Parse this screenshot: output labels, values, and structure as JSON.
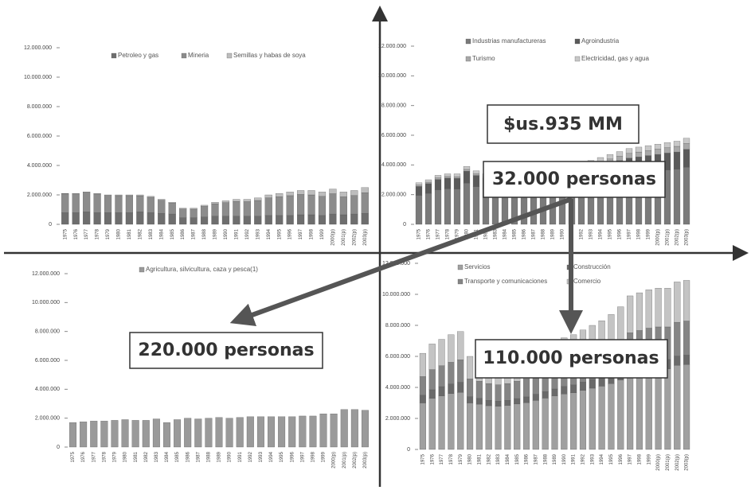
{
  "chart_data": [
    {
      "type": "bar",
      "stacked": true,
      "categories": [
        "1975",
        "1976",
        "1977",
        "1978",
        "1979",
        "1980",
        "1981",
        "1982",
        "1983",
        "1984",
        "1985",
        "1986",
        "1987",
        "1988",
        "1989",
        "1990",
        "1991",
        "1992",
        "1993",
        "1994",
        "1995",
        "1996",
        "1997",
        "1998",
        "1999",
        "2000(p)",
        "2001(p)",
        "2002(p)",
        "2003(p)"
      ],
      "series": [
        {
          "name": "Petroleo y gas",
          "color": "#6e6e6e",
          "values": [
            800000,
            800000,
            850000,
            800000,
            800000,
            800000,
            800000,
            850000,
            800000,
            750000,
            700000,
            450000,
            450000,
            500000,
            550000,
            550000,
            550000,
            550000,
            550000,
            600000,
            600000,
            600000,
            650000,
            650000,
            600000,
            700000,
            650000,
            700000,
            750000
          ]
        },
        {
          "name": "Mineria",
          "color": "#8c8c8c",
          "values": [
            1280000,
            1270000,
            1320000,
            1260000,
            1160000,
            1150000,
            1150000,
            1090000,
            1040000,
            890000,
            740000,
            590000,
            580000,
            720000,
            850000,
            930000,
            1010000,
            990000,
            1070000,
            1200000,
            1280000,
            1350000,
            1380000,
            1350000,
            1300000,
            1380000,
            1220000,
            1260000,
            1400000
          ]
        },
        {
          "name": "Semillas y habas de soya",
          "color": "#bdbdbd",
          "values": [
            20000,
            30000,
            30000,
            40000,
            40000,
            50000,
            50000,
            60000,
            60000,
            60000,
            60000,
            60000,
            70000,
            80000,
            100000,
            120000,
            140000,
            160000,
            180000,
            200000,
            220000,
            250000,
            270000,
            300000,
            300000,
            320000,
            330000,
            340000,
            350000
          ]
        }
      ],
      "ylim": [
        0,
        12000000
      ],
      "yticks": [
        0,
        {
          "value": 2000000,
          "label": "2.000.000"
        },
        {
          "value": 4000000,
          "label": "4.000.000"
        },
        {
          "value": 6000000,
          "label": "6.000.000"
        },
        {
          "value": 8000000,
          "label": "8.000.000"
        },
        {
          "value": 10000000,
          "label": "10.000.000"
        },
        {
          "value": 12000000,
          "label": "12.000.000"
        }
      ]
    },
    {
      "type": "bar",
      "stacked": true,
      "categories": [
        "1975",
        "1976",
        "1977",
        "1978",
        "1979",
        "1980",
        "1981",
        "1982",
        "1983",
        "1984",
        "1985",
        "1986",
        "1987",
        "1988",
        "1989",
        "1990",
        "1991",
        "1992",
        "1993",
        "1994",
        "1995",
        "1996",
        "1997",
        "1998",
        "1999",
        "2000(p)",
        "2001(p)",
        "2002(p)",
        "2003(p)"
      ],
      "series": [
        {
          "name": "Industrias manufactureras",
          "color": "#7a7a7a",
          "values": [
            1950000,
            2090000,
            2320000,
            2390000,
            2380000,
            2780000,
            2540000,
            2400000,
            2220000,
            2150000,
            2050000,
            2120000,
            2260000,
            2390000,
            2520000,
            2650000,
            2780000,
            2830000,
            2880000,
            3010000,
            3140000,
            3270000,
            3400000,
            3460000,
            3530000,
            3590000,
            3660000,
            3710000,
            3850000
          ]
        },
        {
          "name": "Agroindustria",
          "color": "#5a5a5a",
          "values": [
            600000,
            650000,
            700000,
            720000,
            720000,
            800000,
            750000,
            700000,
            680000,
            650000,
            650000,
            660000,
            700000,
            740000,
            780000,
            820000,
            860000,
            880000,
            900000,
            940000,
            980000,
            1020000,
            1060000,
            1080000,
            1100000,
            1120000,
            1140000,
            1160000,
            1200000
          ]
        },
        {
          "name": "Turismo",
          "color": "#a8a8a8",
          "values": [
            100000,
            100000,
            110000,
            110000,
            110000,
            120000,
            110000,
            100000,
            100000,
            100000,
            100000,
            110000,
            120000,
            140000,
            160000,
            180000,
            200000,
            220000,
            240000,
            260000,
            280000,
            300000,
            320000,
            330000,
            340000,
            350000,
            360000,
            380000,
            400000
          ]
        },
        {
          "name": "Electricidad, gas y agua",
          "color": "#c8c8c8",
          "values": [
            150000,
            160000,
            170000,
            180000,
            190000,
            200000,
            200000,
            200000,
            200000,
            200000,
            200000,
            210000,
            220000,
            230000,
            240000,
            250000,
            260000,
            270000,
            280000,
            290000,
            300000,
            310000,
            320000,
            330000,
            330000,
            340000,
            340000,
            350000,
            350000
          ]
        }
      ],
      "ylim": [
        0,
        12000000
      ],
      "yticks": [
        0,
        {
          "value": 2000000,
          "label": "2.000.000"
        },
        {
          "value": 4000000,
          "label": "4.000.000"
        },
        {
          "value": 6000000,
          "label": "6.000.000"
        },
        {
          "value": 8000000,
          "label": "8.000.000"
        },
        {
          "value": 10000000,
          "label": "10.000.000"
        },
        {
          "value": 12000000,
          "label": "12.000.000"
        }
      ]
    },
    {
      "type": "bar",
      "stacked": true,
      "categories": [
        "1975",
        "1976",
        "1977",
        "1978",
        "1979",
        "1980",
        "1981",
        "1982",
        "1983",
        "1984",
        "1985",
        "1986",
        "1987",
        "1988",
        "1989",
        "1990",
        "1991",
        "1992",
        "1993",
        "1994",
        "1995",
        "1996",
        "1997",
        "1998",
        "1999",
        "2000(p)",
        "2001(p)",
        "2002(p)",
        "2003(p)"
      ],
      "series": [
        {
          "name": "Agricultura, silvicultura, caza y pesca(1)",
          "color": "#9a9a9a",
          "values": [
            1700000,
            1750000,
            1800000,
            1800000,
            1850000,
            1900000,
            1850000,
            1850000,
            1950000,
            1700000,
            1900000,
            2000000,
            1950000,
            2000000,
            2050000,
            2000000,
            2050000,
            2100000,
            2100000,
            2100000,
            2100000,
            2100000,
            2150000,
            2150000,
            2300000,
            2300000,
            2600000,
            2600000,
            2550000
          ]
        }
      ],
      "ylim": [
        0,
        12000000
      ],
      "yticks": [
        0,
        {
          "value": 2000000,
          "label": "2.000.000"
        },
        {
          "value": 4000000,
          "label": "4.000.000"
        },
        {
          "value": 6000000,
          "label": "6.000.000"
        },
        {
          "value": 8000000,
          "label": "8.000.000"
        },
        {
          "value": 10000000,
          "label": "10.000.000"
        },
        {
          "value": 12000000,
          "label": "12.000.000"
        }
      ]
    },
    {
      "type": "bar",
      "stacked": true,
      "categories": [
        "1975",
        "1976",
        "1977",
        "1978",
        "1979",
        "1980",
        "1981",
        "1982",
        "1983",
        "1984",
        "1985",
        "1986",
        "1987",
        "1988",
        "1989",
        "1990",
        "1991",
        "1992",
        "1993",
        "1994",
        "1995",
        "1996",
        "1997",
        "1998",
        "1999",
        "2000(p)",
        "2001(p)",
        "2002(p)",
        "2003(p)"
      ],
      "series": [
        {
          "name": "Servicios",
          "color": "#a0a0a0",
          "values": [
            3000000,
            3300000,
            3450000,
            3600000,
            3680000,
            3000000,
            2920000,
            2820000,
            2780000,
            2840000,
            2930000,
            3020000,
            3160000,
            3310000,
            3450000,
            3580000,
            3660000,
            3810000,
            3950000,
            4080000,
            4250000,
            4480000,
            4810000,
            4910000,
            5070000,
            5170000,
            5200000,
            5420000,
            5480000
          ]
        },
        {
          "name": "Construcción",
          "color": "#6a6a6a",
          "values": [
            500000,
            550000,
            600000,
            620000,
            650000,
            400000,
            380000,
            350000,
            330000,
            330000,
            350000,
            370000,
            400000,
            420000,
            450000,
            480000,
            500000,
            530000,
            560000,
            600000,
            650000,
            700000,
            760000,
            760000,
            700000,
            650000,
            600000,
            600000,
            600000
          ]
        },
        {
          "name": "Transporte y comunicaciones",
          "color": "#858585",
          "values": [
            1200000,
            1300000,
            1350000,
            1400000,
            1450000,
            1150000,
            1100000,
            1080000,
            1060000,
            1080000,
            1120000,
            1160000,
            1220000,
            1280000,
            1340000,
            1400000,
            1450000,
            1500000,
            1560000,
            1620000,
            1700000,
            1800000,
            1950000,
            2000000,
            2050000,
            2080000,
            2100000,
            2180000,
            2200000
          ]
        },
        {
          "name": "Comercio",
          "color": "#c4c4c4",
          "values": [
            1500000,
            1650000,
            1700000,
            1780000,
            1820000,
            1450000,
            1400000,
            1350000,
            1330000,
            1350000,
            1400000,
            1450000,
            1520000,
            1590000,
            1660000,
            1740000,
            1790000,
            1860000,
            1930000,
            2000000,
            2100000,
            2220000,
            2380000,
            2430000,
            2480000,
            2500000,
            2500000,
            2600000,
            2620000
          ]
        }
      ],
      "ylim": [
        0,
        12000000
      ],
      "yticks": [
        0,
        {
          "value": 2000000,
          "label": "2.000.000"
        },
        {
          "value": 4000000,
          "label": "4.000.000"
        },
        {
          "value": 6000000,
          "label": "6.000.000"
        },
        {
          "value": 8000000,
          "label": "8.000.000"
        },
        {
          "value": 10000000,
          "label": "10.000.000"
        },
        {
          "value": 12000000,
          "label": "12.000.000"
        }
      ]
    }
  ],
  "annotations": [
    "$us.935 MM",
    "32.000 personas",
    "220.000 personas",
    "110.000 personas"
  ]
}
